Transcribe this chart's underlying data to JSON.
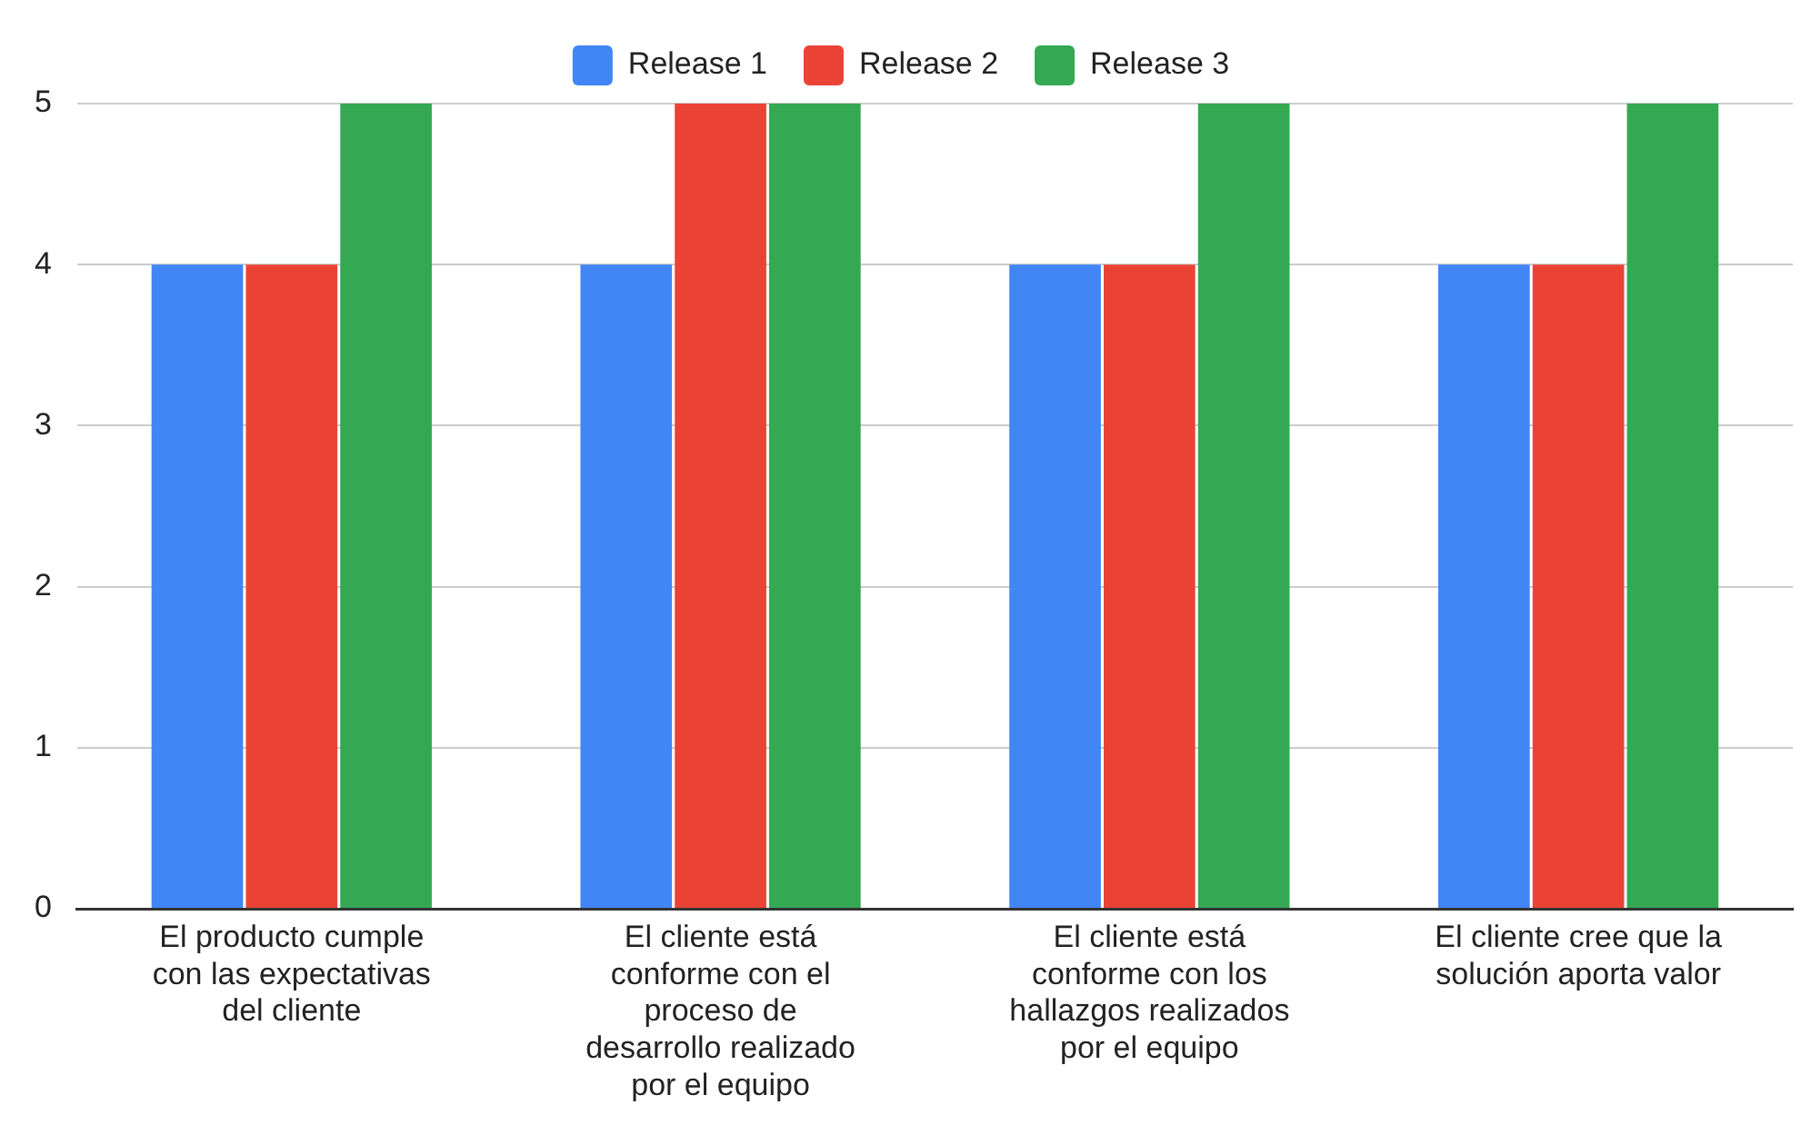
{
  "chart_data": {
    "type": "bar",
    "categories": [
      "El producto cumple con las expectativas del cliente",
      "El cliente está conforme con el proceso de desarrollo realizado por el equipo",
      "El cliente está conforme con los hallazgos realizados por el equipo",
      "El cliente cree que la solución aporta valor"
    ],
    "series": [
      {
        "name": "Release 1",
        "color": "#4285f4",
        "values": [
          4,
          4,
          4,
          4
        ]
      },
      {
        "name": "Release 2",
        "color": "#ea4335",
        "values": [
          4,
          5,
          4,
          4
        ]
      },
      {
        "name": "Release 3",
        "color": "#34a853",
        "values": [
          5,
          5,
          5,
          5
        ]
      }
    ],
    "ylim": [
      0,
      5
    ],
    "yticks": [
      0,
      1,
      2,
      3,
      4,
      5
    ],
    "grid": "y",
    "legend": "top"
  }
}
